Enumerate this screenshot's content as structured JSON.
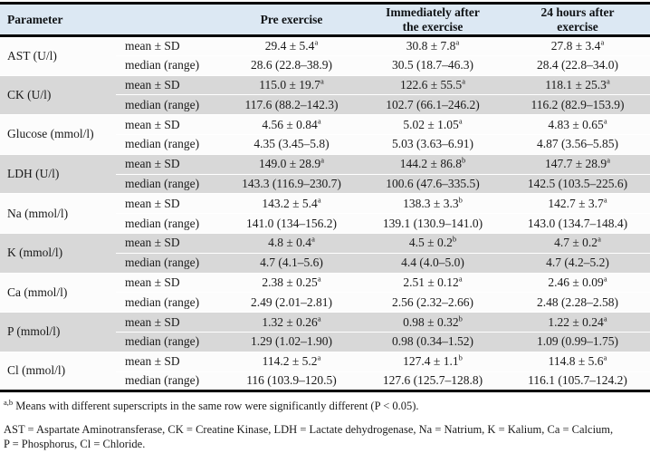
{
  "colors": {
    "header_bg": "#dce8f3",
    "band_light": "#fcfcfc",
    "band_dark": "#d8d8d8",
    "border": "#000000",
    "header_text": "#101316",
    "body_text": "#1a1a1a"
  },
  "header": {
    "parameter": "Parameter",
    "pre": "Pre exercise",
    "immediately": "Immediately after the exercise",
    "after24": "24 hours after exercise"
  },
  "row_labels": {
    "mean": "mean ± SD",
    "median": "median (range)"
  },
  "parameters": [
    {
      "name": "AST (U/l)",
      "mean": [
        {
          "v": "29.4 ± 5.4",
          "s": "a"
        },
        {
          "v": "30.8 ± 7.8",
          "s": "a"
        },
        {
          "v": "27.8 ± 3.4",
          "s": "a"
        }
      ],
      "median": [
        "28.6 (22.8–38.9)",
        "30.5 (18.7–46.3)",
        "28.4 (22.8–34.0)"
      ]
    },
    {
      "name": "CK (U/l)",
      "mean": [
        {
          "v": "115.0 ± 19.7",
          "s": "a"
        },
        {
          "v": "122.6 ± 55.5",
          "s": "a"
        },
        {
          "v": "118.1 ± 25.3",
          "s": "a"
        }
      ],
      "median": [
        "117.6 (88.2–142.3)",
        "102.7 (66.1–246.2)",
        "116.2 (82.9–153.9)"
      ]
    },
    {
      "name": "Glucose (mmol/l)",
      "mean": [
        {
          "v": "4.56 ± 0.84",
          "s": "a"
        },
        {
          "v": "5.02 ± 1.05",
          "s": "a"
        },
        {
          "v": "4.83 ± 0.65",
          "s": "a"
        }
      ],
      "median": [
        "4.35 (3.45–5.8)",
        "5.03 (3.63–6.91)",
        "4.87 (3.56–5.85)"
      ]
    },
    {
      "name": "LDH (U/l)",
      "mean": [
        {
          "v": "149.0 ± 28.9",
          "s": "a"
        },
        {
          "v": "144.2 ± 86.8",
          "s": "b"
        },
        {
          "v": "147.7 ± 28.9",
          "s": "a"
        }
      ],
      "median": [
        "143.3 (116.9–230.7)",
        "100.6 (47.6–335.5)",
        "142.5 (103.5–225.6)"
      ]
    },
    {
      "name": "Na (mmol/l)",
      "mean": [
        {
          "v": "143.2 ± 5.4",
          "s": "a"
        },
        {
          "v": "138.3 ± 3.3",
          "s": "b"
        },
        {
          "v": "142.7 ± 3.7",
          "s": "a"
        }
      ],
      "median": [
        "141.0 (134–156.2)",
        "139.1 (130.9–141.0)",
        "143.0 (134.7–148.4)"
      ]
    },
    {
      "name": "K (mmol/l)",
      "mean": [
        {
          "v": "4.8 ± 0.4",
          "s": "a"
        },
        {
          "v": "4.5 ± 0.2",
          "s": "b"
        },
        {
          "v": "4.7 ± 0.2",
          "s": "a"
        }
      ],
      "median": [
        "4.7 (4.1–5.6)",
        "4.4 (4.0–5.0)",
        "4.7 (4.2–5.2)"
      ]
    },
    {
      "name": "Ca (mmol/l)",
      "mean": [
        {
          "v": "2.38 ± 0.25",
          "s": "a"
        },
        {
          "v": "2.51 ± 0.12",
          "s": "a"
        },
        {
          "v": "2.46 ± 0.09",
          "s": "a"
        }
      ],
      "median": [
        "2.49 (2.01–2.81)",
        "2.56 (2.32–2.66)",
        "2.48 (2.28–2.58)"
      ]
    },
    {
      "name": "P (mmol/l)",
      "mean": [
        {
          "v": "1.32 ± 0.26",
          "s": "a"
        },
        {
          "v": "0.98 ± 0.32",
          "s": "b"
        },
        {
          "v": "1.22 ± 0.24",
          "s": "a"
        }
      ],
      "median": [
        "1.29 (1.02–1.90)",
        "0.98 (0.34–1.52)",
        "1.09 (0.99–1.75)"
      ]
    },
    {
      "name": "Cl (mmol/l)",
      "mean": [
        {
          "v": "114.2 ± 5.2",
          "s": "a"
        },
        {
          "v": "127.4 ± 1.1",
          "s": "b"
        },
        {
          "v": "114.8 ± 5.6",
          "s": "a"
        }
      ],
      "median": [
        "116 (103.9–120.5)",
        "127.6 (125.7–128.8)",
        "116.1 (105.7–124.2)"
      ]
    }
  ],
  "footnotes": {
    "sig_sup": "a,b",
    "sig_text": " Means with different superscripts in the same row were significantly different (P < 0.05).",
    "abbr_line1": "AST = Aspartate Aminotransferase, CK = Creatine Kinase, LDH = Lactate dehydrogenase, Na = Natrium, K = Kalium, Ca = Calcium,",
    "abbr_line2": "P = Phosphorus, Cl = Chloride."
  }
}
